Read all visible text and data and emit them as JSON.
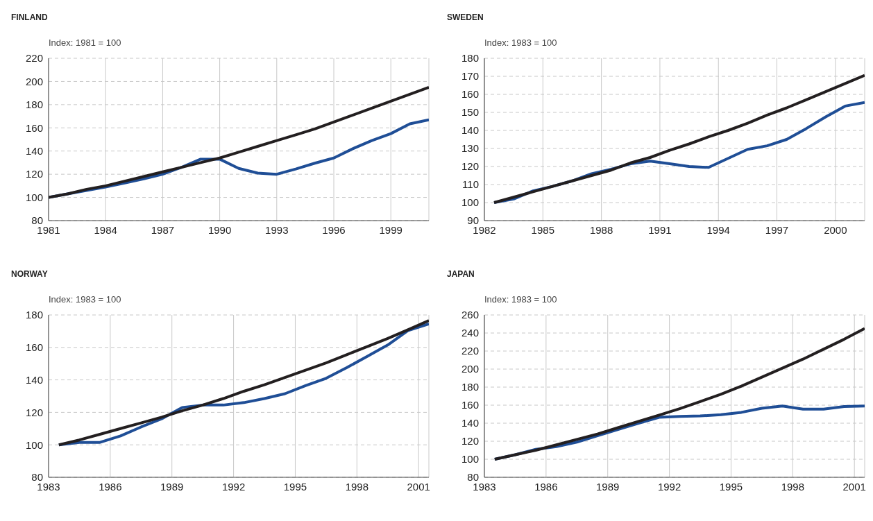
{
  "chart_data": [
    {
      "type": "line",
      "title": "FINLAND",
      "ylabel": "Index: 1981 = 100",
      "x": [
        1981,
        1982,
        1983,
        1984,
        1985,
        1986,
        1987,
        1988,
        1989,
        1990,
        1991,
        1992,
        1993,
        1994,
        1995,
        1996,
        1997,
        1998,
        1999,
        2000,
        2001
      ],
      "xlim": [
        1981,
        2001
      ],
      "xticks": [
        1981,
        1984,
        1987,
        1990,
        1993,
        1996,
        1999
      ],
      "ylim": [
        80,
        220
      ],
      "yticks": [
        80,
        100,
        120,
        140,
        160,
        180,
        200,
        220
      ],
      "grid": true,
      "marker": "none",
      "line_style": "solid",
      "series": [
        {
          "color": "#1f4e96",
          "values": [
            100,
            103,
            106,
            109,
            112.5,
            116,
            120,
            126,
            133,
            133,
            125,
            121,
            120,
            124.5,
            129.5,
            134,
            142,
            149,
            155,
            163.5,
            167
          ]
        },
        {
          "color": "#231f20",
          "values": [
            100,
            103,
            107,
            110,
            114,
            118,
            122,
            126,
            130,
            134,
            139,
            144,
            149,
            154,
            159,
            165,
            171,
            177,
            183,
            189,
            195
          ]
        }
      ]
    },
    {
      "type": "line",
      "title": "SWEDEN",
      "ylabel": "Index: 1983 = 100",
      "x": [
        1982.5,
        1983.5,
        1984.5,
        1985.5,
        1986.5,
        1987.5,
        1988.5,
        1989.5,
        1990.5,
        1991.5,
        1992.5,
        1993.5,
        1994.5,
        1995.5,
        1996.5,
        1997.5,
        1998.5,
        1999.5,
        2000.5,
        2001.5
      ],
      "xlim": [
        1982,
        2001.5
      ],
      "xticks": [
        1982,
        1985,
        1988,
        1991,
        1994,
        1997,
        2000
      ],
      "ylim": [
        90,
        180
      ],
      "yticks": [
        90,
        100,
        110,
        120,
        130,
        140,
        150,
        160,
        170,
        180
      ],
      "grid": true,
      "marker": "none",
      "line_style": "solid",
      "series": [
        {
          "color": "#1f4e96",
          "values": [
            100,
            102,
            106.5,
            109,
            112,
            116,
            118.5,
            121.5,
            123,
            121.5,
            120,
            119.5,
            124.5,
            129.5,
            131.5,
            135,
            141,
            147.5,
            153.5,
            155.5
          ]
        },
        {
          "color": "#231f20",
          "values": [
            100,
            103,
            106,
            109,
            112,
            115,
            118,
            122,
            125,
            129,
            132.5,
            136.5,
            140,
            144,
            148.5,
            152.5,
            157,
            161.5,
            166,
            170.5
          ]
        }
      ]
    },
    {
      "type": "line",
      "title": "NORWAY",
      "ylabel": "Index: 1983 = 100",
      "x": [
        1983.5,
        1984.5,
        1985.5,
        1986.5,
        1987.5,
        1988.5,
        1989.5,
        1990.5,
        1991.5,
        1992.5,
        1993.5,
        1994.5,
        1995.5,
        1996.5,
        1997.5,
        1998.5,
        1999.5,
        2000.5,
        2001.5
      ],
      "xlim": [
        1983,
        2001.5
      ],
      "xticks": [
        1983,
        1986,
        1989,
        1992,
        1995,
        1998,
        2001
      ],
      "ylim": [
        80,
        180
      ],
      "yticks": [
        80,
        100,
        120,
        140,
        160,
        180
      ],
      "grid": true,
      "marker": "none",
      "line_style": "solid",
      "series": [
        {
          "color": "#1f4e96",
          "values": [
            100,
            101.5,
            101.5,
            105.5,
            111,
            116,
            123,
            124.5,
            124.5,
            126,
            128.5,
            131.5,
            136.5,
            141,
            147.5,
            154.5,
            161.5,
            170.5,
            174.5
          ]
        },
        {
          "color": "#231f20",
          "values": [
            100,
            103,
            106.5,
            110,
            113.5,
            117,
            121,
            124.5,
            128.5,
            133,
            137,
            141.5,
            146,
            150.5,
            155.5,
            160.5,
            165.5,
            171,
            176.5
          ]
        }
      ]
    },
    {
      "type": "line",
      "title": "JAPAN",
      "ylabel": "Index: 1983 = 100",
      "x": [
        1983.5,
        1984.5,
        1985.5,
        1986.5,
        1987.5,
        1988.5,
        1989.5,
        1990.5,
        1991.5,
        1992.5,
        1993.5,
        1994.5,
        1995.5,
        1996.5,
        1997.5,
        1998.5,
        1999.5,
        2000.5,
        2001.5
      ],
      "xlim": [
        1983,
        2001.5
      ],
      "xticks": [
        1983,
        1986,
        1989,
        1992,
        1995,
        1998,
        2001
      ],
      "ylim": [
        80,
        260
      ],
      "yticks": [
        80,
        100,
        120,
        140,
        160,
        180,
        200,
        220,
        240,
        260
      ],
      "grid": true,
      "marker": "none",
      "line_style": "solid",
      "series": [
        {
          "color": "#1f4e96",
          "values": [
            100,
            105,
            111,
            114,
            119,
            126,
            133,
            140,
            146.5,
            147.5,
            148,
            149.5,
            152,
            156.5,
            159,
            155.5,
            155.5,
            158.5,
            159
          ]
        },
        {
          "color": "#231f20",
          "values": [
            100,
            105,
            110,
            116,
            122,
            128,
            135,
            142,
            149,
            156,
            164,
            172,
            181,
            191,
            201,
            211,
            222,
            233,
            245
          ]
        }
      ]
    }
  ]
}
